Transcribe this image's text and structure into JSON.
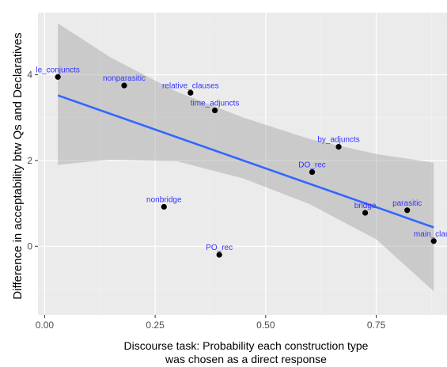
{
  "chart_data": {
    "type": "scatter",
    "xlabel": [
      "Discourse task:  Probability each construction type",
      "was chosen as a direct response"
    ],
    "ylabel": "Difference in  acceptability btw Qs and Declaratives",
    "xlim": [
      -0.015,
      0.91
    ],
    "ylim": [
      -1.6,
      5.45
    ],
    "x_ticks": [
      0.0,
      0.25,
      0.5,
      0.75
    ],
    "x_tick_labels": [
      "0.00",
      "0.25",
      "0.50",
      "0.75"
    ],
    "y_ticks": [
      0,
      2,
      4
    ],
    "y_tick_labels": [
      "0",
      "2",
      "4"
    ],
    "grid": true,
    "points": [
      {
        "label": "le_conjuncts",
        "x": 0.03,
        "y": 3.95
      },
      {
        "label": "nonparasitic",
        "x": 0.18,
        "y": 3.75
      },
      {
        "label": "relative_clauses",
        "x": 0.33,
        "y": 3.58
      },
      {
        "label": "time_adjuncts",
        "x": 0.385,
        "y": 3.17
      },
      {
        "label": "by_adjuncts",
        "x": 0.665,
        "y": 2.32
      },
      {
        "label": "DO_rec",
        "x": 0.605,
        "y": 1.73
      },
      {
        "label": "nonbridge",
        "x": 0.27,
        "y": 0.92
      },
      {
        "label": "bridge",
        "x": 0.725,
        "y": 0.78
      },
      {
        "label": "parasitic",
        "x": 0.82,
        "y": 0.84
      },
      {
        "label": "main_claus",
        "x": 0.88,
        "y": 0.12
      },
      {
        "label": "PO_rec",
        "x": 0.395,
        "y": -0.2
      }
    ],
    "regression": {
      "x0": 0.03,
      "y0": 3.52,
      "x1": 0.88,
      "y1": 0.44
    },
    "ci_band": [
      {
        "x": 0.03,
        "lo": 1.9,
        "hi": 5.2
      },
      {
        "x": 0.15,
        "lo": 2.02,
        "hi": 4.4
      },
      {
        "x": 0.3,
        "lo": 1.98,
        "hi": 3.6
      },
      {
        "x": 0.45,
        "lo": 1.58,
        "hi": 3.0
      },
      {
        "x": 0.6,
        "lo": 0.98,
        "hi": 2.5
      },
      {
        "x": 0.75,
        "lo": 0.16,
        "hi": 2.15
      },
      {
        "x": 0.88,
        "lo": -1.05,
        "hi": 1.95
      }
    ],
    "colors": {
      "panel": "#ebebeb",
      "grid_major": "#ffffff",
      "grid_minor": "#f5f5f5",
      "line": "#3366ff",
      "band": "#999999",
      "points": "#000000",
      "labels": "#3333ff"
    }
  }
}
